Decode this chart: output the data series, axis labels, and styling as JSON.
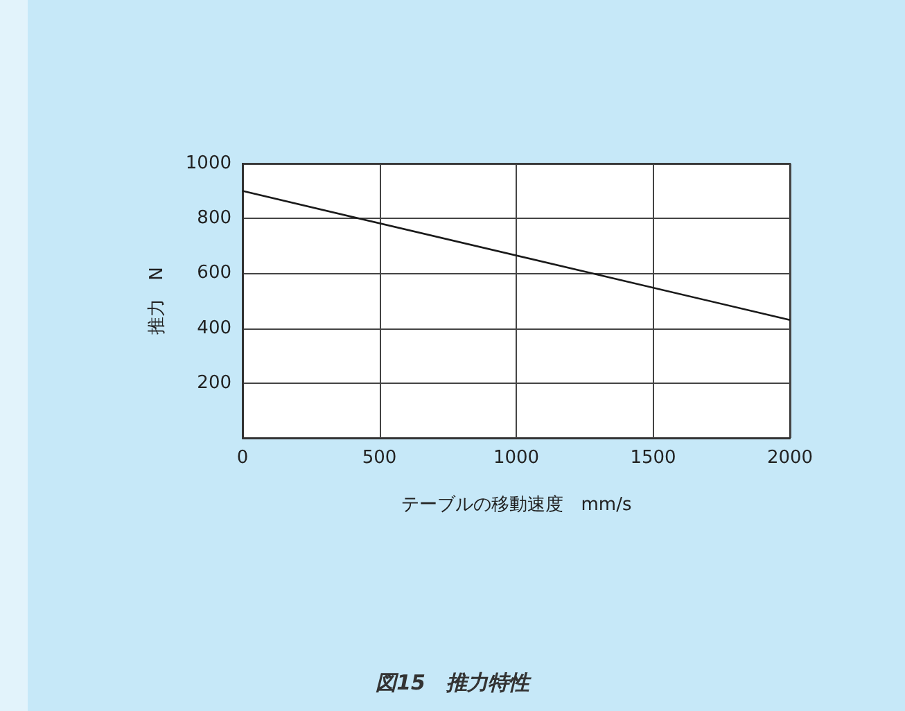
{
  "chart_data": {
    "type": "line",
    "title": "図15　推力特性",
    "xlabel": "テーブルの移動速度　mm/s",
    "ylabel": "推力　N",
    "x": [
      0,
      2000
    ],
    "series": [
      {
        "color": "#1a1a1a",
        "values": [
          900,
          430
        ]
      }
    ],
    "xlim": [
      0,
      2000
    ],
    "xticks": [
      0,
      500,
      1000,
      1500,
      2000
    ],
    "ylim": [
      0,
      1000
    ],
    "yticks": [
      {
        "value": 0,
        "label": null
      },
      200,
      400,
      600,
      800,
      1000
    ],
    "grid": true,
    "marker": "none",
    "line_style": "solid"
  }
}
